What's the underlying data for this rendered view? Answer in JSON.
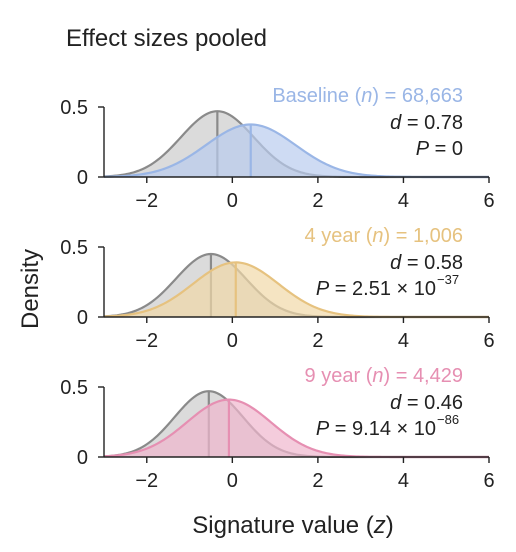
{
  "figure": {
    "title": "Effect sizes pooled",
    "ylabel": "Density",
    "xlabel": "Signature value (z)"
  },
  "chart_data": [
    {
      "type": "area",
      "xlim": [
        -3,
        6
      ],
      "ylim": [
        0,
        0.5
      ],
      "xticks": [
        -2,
        0,
        2,
        4,
        6
      ],
      "xtick_labels": [
        "−2",
        "0",
        "2",
        "4",
        "6"
      ],
      "yticks": [
        0,
        0.5
      ],
      "ytick_labels": [
        "0",
        "0.5"
      ],
      "legend_text": "Baseline (n) = 68,663",
      "stats": {
        "d": "d = 0.78",
        "p": "P = 0"
      },
      "colors": {
        "line": "#9ab6e6",
        "fill": "#b9ccee",
        "ref_line": "#8a8a8a",
        "ref_fill": "#cfcfcf"
      },
      "series": [
        {
          "name": "",
          "role": "reference",
          "mean": -0.35,
          "sd": 0.85,
          "peak": 0.47
        },
        {
          "name": "Baseline",
          "mean": 0.43,
          "sd": 1.05,
          "peak": 0.375
        }
      ]
    },
    {
      "type": "area",
      "xlim": [
        -3,
        6
      ],
      "ylim": [
        0,
        0.5
      ],
      "xticks": [
        -2,
        0,
        2,
        4,
        6
      ],
      "xtick_labels": [
        "−2",
        "0",
        "2",
        "4",
        "6"
      ],
      "yticks": [
        0,
        0.5
      ],
      "ytick_labels": [
        "0",
        "0.5"
      ],
      "legend_text": "4 year (n) = 1,006",
      "stats": {
        "d": "d = 0.58",
        "p": "P = 2.51 × 10",
        "p_exp": "−37"
      },
      "colors": {
        "line": "#e6c27f",
        "fill": "#f1d9a8",
        "ref_line": "#8a8a8a",
        "ref_fill": "#cfcfcf"
      },
      "series": [
        {
          "name": "",
          "role": "reference",
          "mean": -0.5,
          "sd": 0.82,
          "peak": 0.45
        },
        {
          "name": "4 year",
          "mean": 0.08,
          "sd": 1.0,
          "peak": 0.39
        }
      ]
    },
    {
      "type": "area",
      "xlim": [
        -3,
        6
      ],
      "ylim": [
        0,
        0.5
      ],
      "xticks": [
        -2,
        0,
        2,
        4,
        6
      ],
      "xtick_labels": [
        "−2",
        "0",
        "2",
        "4",
        "6"
      ],
      "yticks": [
        0,
        0.5
      ],
      "ytick_labels": [
        "0",
        "0.5"
      ],
      "legend_text": "9 year (n) = 4,429",
      "stats": {
        "d": "d = 0.46",
        "p": "P = 9.14 × 10",
        "p_exp": "−86"
      },
      "colors": {
        "line": "#e68fb2",
        "fill": "#f0b7cd",
        "ref_line": "#8a8a8a",
        "ref_fill": "#cfcfcf"
      },
      "series": [
        {
          "name": "",
          "role": "reference",
          "mean": -0.55,
          "sd": 0.8,
          "peak": 0.47
        },
        {
          "name": "9 year",
          "mean": -0.08,
          "sd": 0.98,
          "peak": 0.41
        }
      ]
    }
  ]
}
